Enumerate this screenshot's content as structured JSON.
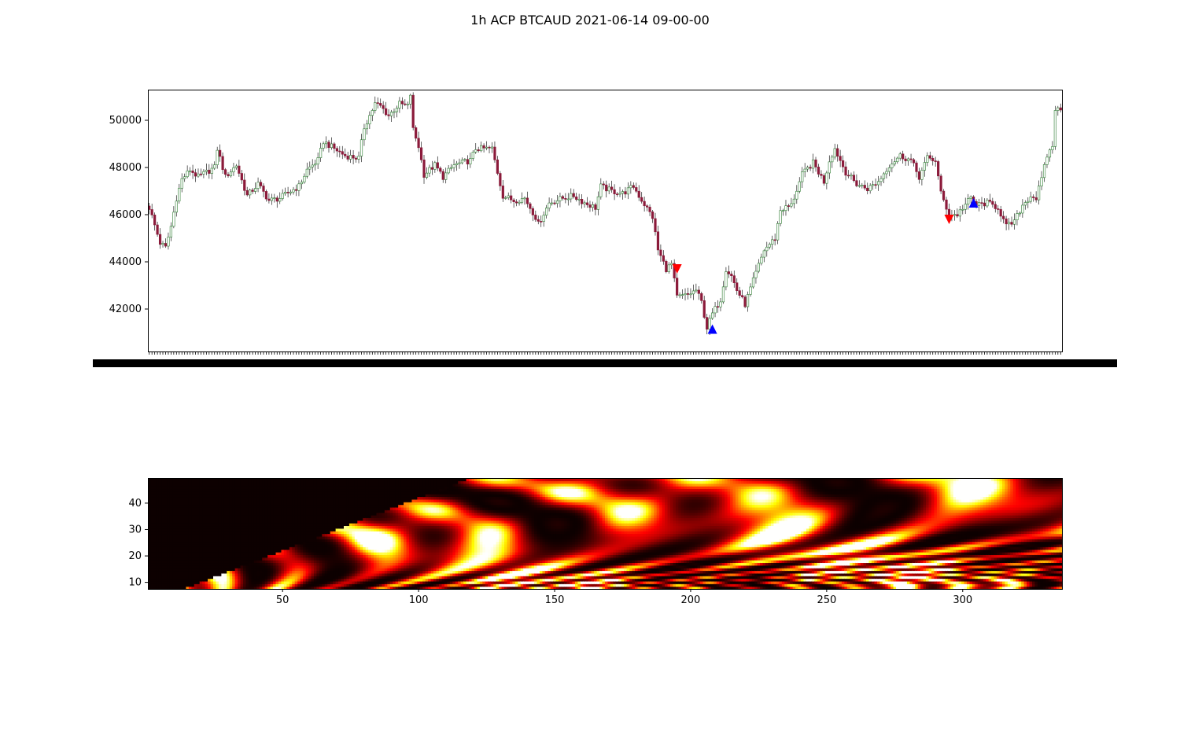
{
  "figure": {
    "title": "1h ACP BTCAUD 2021-06-14 09-00-00"
  },
  "colors": {
    "up_candle": "#2e7d32",
    "down_candle": "#8b1a3a",
    "sell_marker": "#ff0000",
    "buy_marker": "#0000ff",
    "heatmap_low": "#0d0000",
    "heatmap_high": "#ffffff"
  },
  "chart_data": [
    {
      "type": "candlestick",
      "title": "",
      "xlabel": "",
      "ylabel": "",
      "candle_count": 336,
      "ylim": [
        40200,
        51300
      ],
      "yticks": [
        42000,
        44000,
        46000,
        48000,
        50000
      ],
      "xtick_labels_note": "dense overlapping timestamp labels (illegible)",
      "close_anchors": [
        [
          0,
          46300
        ],
        [
          4,
          44800
        ],
        [
          6,
          44600
        ],
        [
          8,
          45500
        ],
        [
          10,
          46700
        ],
        [
          12,
          47500
        ],
        [
          15,
          47900
        ],
        [
          18,
          47600
        ],
        [
          24,
          48000
        ],
        [
          25,
          48800
        ],
        [
          28,
          47600
        ],
        [
          32,
          48100
        ],
        [
          36,
          46800
        ],
        [
          40,
          47300
        ],
        [
          44,
          46600
        ],
        [
          48,
          46700
        ],
        [
          52,
          47000
        ],
        [
          55,
          47200
        ],
        [
          58,
          47900
        ],
        [
          62,
          48300
        ],
        [
          64,
          49100
        ],
        [
          68,
          48800
        ],
        [
          72,
          48500
        ],
        [
          77,
          48400
        ],
        [
          79,
          49700
        ],
        [
          83,
          50700
        ],
        [
          85,
          50600
        ],
        [
          88,
          50200
        ],
        [
          92,
          50700
        ],
        [
          95,
          50600
        ],
        [
          96,
          51100
        ],
        [
          97,
          49600
        ],
        [
          99,
          48900
        ],
        [
          101,
          47700
        ],
        [
          105,
          48100
        ],
        [
          108,
          47600
        ],
        [
          112,
          48100
        ],
        [
          118,
          48300
        ],
        [
          120,
          48800
        ],
        [
          126,
          48800
        ],
        [
          128,
          47800
        ],
        [
          130,
          46800
        ],
        [
          134,
          46600
        ],
        [
          138,
          46700
        ],
        [
          142,
          45900
        ],
        [
          143,
          45600
        ],
        [
          147,
          46500
        ],
        [
          152,
          46700
        ],
        [
          156,
          46800
        ],
        [
          160,
          46500
        ],
        [
          164,
          46300
        ],
        [
          166,
          47200
        ],
        [
          170,
          47000
        ],
        [
          174,
          46900
        ],
        [
          178,
          47200
        ],
        [
          180,
          46800
        ],
        [
          185,
          45900
        ],
        [
          187,
          44500
        ],
        [
          190,
          43700
        ],
        [
          192,
          43900
        ],
        [
          194,
          42500
        ],
        [
          198,
          42600
        ],
        [
          201,
          42800
        ],
        [
          203,
          42300
        ],
        [
          205,
          41200
        ],
        [
          207,
          41800
        ],
        [
          210,
          42400
        ],
        [
          212,
          43700
        ],
        [
          214,
          43400
        ],
        [
          216,
          42800
        ],
        [
          219,
          42200
        ],
        [
          222,
          43200
        ],
        [
          226,
          44500
        ],
        [
          230,
          45000
        ],
        [
          232,
          46200
        ],
        [
          236,
          46400
        ],
        [
          240,
          47700
        ],
        [
          244,
          48200
        ],
        [
          248,
          47400
        ],
        [
          250,
          48300
        ],
        [
          252,
          48800
        ],
        [
          256,
          47800
        ],
        [
          260,
          47300
        ],
        [
          264,
          47100
        ],
        [
          268,
          47400
        ],
        [
          272,
          48100
        ],
        [
          276,
          48500
        ],
        [
          280,
          48300
        ],
        [
          283,
          47600
        ],
        [
          286,
          48400
        ],
        [
          289,
          48300
        ],
        [
          291,
          46900
        ],
        [
          294,
          46000
        ],
        [
          297,
          46000
        ],
        [
          299,
          46300
        ],
        [
          302,
          46700
        ],
        [
          304,
          46400
        ],
        [
          308,
          46500
        ],
        [
          312,
          46300
        ],
        [
          315,
          45500
        ],
        [
          318,
          45700
        ],
        [
          321,
          46400
        ],
        [
          324,
          46800
        ],
        [
          326,
          46700
        ],
        [
          328,
          47500
        ],
        [
          330,
          48500
        ],
        [
          332,
          48900
        ],
        [
          333,
          50500
        ],
        [
          335,
          50400
        ]
      ],
      "markers": [
        {
          "kind": "sell",
          "shape": "down-triangle",
          "x": 194,
          "y": 43700
        },
        {
          "kind": "sell",
          "shape": "down-triangle",
          "x": 294,
          "y": 45800
        },
        {
          "kind": "buy",
          "shape": "up-triangle",
          "x": 207,
          "y": 41150
        },
        {
          "kind": "buy",
          "shape": "up-triangle",
          "x": 303,
          "y": 46500
        }
      ]
    },
    {
      "type": "heatmap",
      "title": "",
      "xlabel": "",
      "ylabel": "",
      "colormap": "hot",
      "xlim": [
        1,
        336
      ],
      "ylim": [
        8,
        49
      ],
      "xticks": [
        50,
        100,
        150,
        200,
        250,
        300
      ],
      "yticks": [
        10,
        20,
        30,
        40
      ],
      "undefined_region": "dark triangle where x < 15 + 2.5*(period - 8)"
    }
  ]
}
